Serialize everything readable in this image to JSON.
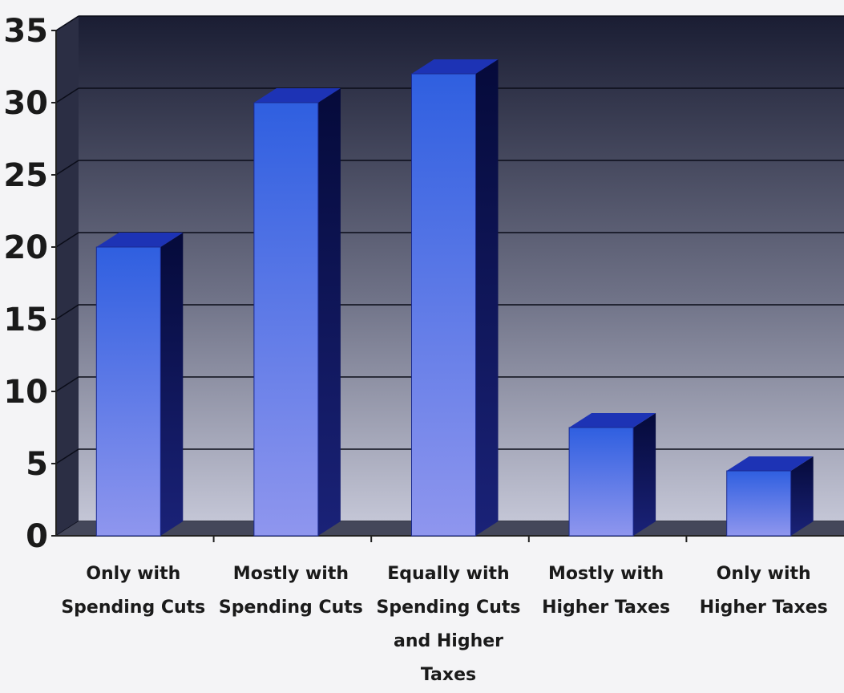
{
  "chart_data": {
    "type": "bar",
    "style": "3d-column",
    "title": "",
    "xlabel": "",
    "ylabel": "",
    "ylim": [
      0,
      35
    ],
    "yticks": [
      0,
      5,
      10,
      15,
      20,
      25,
      30,
      35
    ],
    "grid": true,
    "categories": [
      [
        "Only with",
        "Spending Cuts"
      ],
      [
        "Mostly with",
        "Spending Cuts"
      ],
      [
        "Equally with",
        "Spending Cuts",
        "and Higher",
        "Taxes"
      ],
      [
        "Mostly with",
        "Higher Taxes"
      ],
      [
        "Only with",
        "Higher Taxes"
      ]
    ],
    "values": [
      20,
      30,
      32,
      7.5,
      4.5
    ],
    "colors": {
      "bar_top": "#2f5fe0",
      "bar_bottom": "#8f96ee",
      "bar_side": "#0e1560",
      "bar_cap": "#1d33b5",
      "plot_top": "#1a1d33",
      "plot_bottom": "#c4c6d6",
      "grid": "#0a0c18",
      "floor": "#44475a"
    }
  }
}
